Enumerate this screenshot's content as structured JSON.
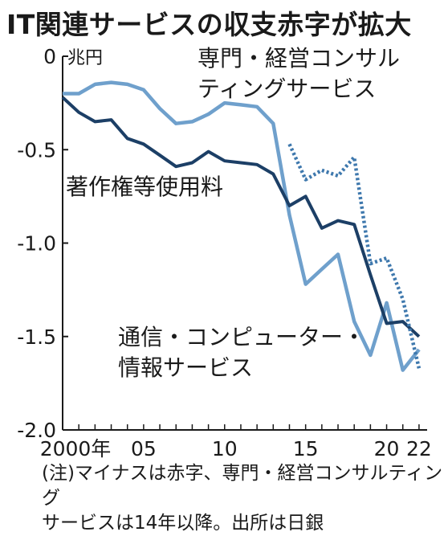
{
  "title": "IT関連サービスの収支赤字が拡大",
  "annotations": {
    "consulting_line1": "専門・経営コンサル",
    "consulting_line2": "ティングサービス",
    "royalty": "著作権等使用料",
    "telecom_line1": "通信・コンピューター・",
    "telecom_line2": "情報サービス"
  },
  "footnote": {
    "line1": "(注)マイナスは赤字、専門・経営コンサルティング",
    "line2": "サービスは14年以降。出所は日銀"
  },
  "colors": {
    "royalty": "#1c3f66",
    "telecom": "#6fa0cc",
    "consulting": "#3e78ad",
    "axis": "#1a1a1a",
    "text": "#1a1a1a"
  },
  "chart_data": {
    "type": "line",
    "unit": "兆円",
    "ylim": [
      -2.0,
      0
    ],
    "yticks": [
      {
        "value": 0,
        "label": "0"
      },
      {
        "value": -0.5,
        "label": "-0.5"
      },
      {
        "value": -1.0,
        "label": "-1.0"
      },
      {
        "value": -1.5,
        "label": "-1.5"
      },
      {
        "value": -2.0,
        "label": "-2.0"
      }
    ],
    "xlim": [
      2000,
      2022.5
    ],
    "xticks": [
      {
        "value": 2000,
        "label": "2000年"
      },
      {
        "value": 2005,
        "label": "05"
      },
      {
        "value": 2010,
        "label": "10"
      },
      {
        "value": 2015,
        "label": "15"
      },
      {
        "value": 2020,
        "label": "20"
      },
      {
        "value": 2022,
        "label": "22"
      }
    ],
    "grid": false,
    "series": [
      {
        "name": "通信・コンピューター・情報サービス",
        "style": "solid-light",
        "points": [
          [
            2000,
            -0.2
          ],
          [
            2001,
            -0.2
          ],
          [
            2002,
            -0.15
          ],
          [
            2003,
            -0.14
          ],
          [
            2004,
            -0.15
          ],
          [
            2005,
            -0.18
          ],
          [
            2006,
            -0.28
          ],
          [
            2007,
            -0.36
          ],
          [
            2008,
            -0.35
          ],
          [
            2009,
            -0.31
          ],
          [
            2010,
            -0.25
          ],
          [
            2011,
            -0.26
          ],
          [
            2012,
            -0.27
          ],
          [
            2013,
            -0.36
          ],
          [
            2014,
            -0.85
          ],
          [
            2015,
            -1.22
          ],
          [
            2016,
            -1.14
          ],
          [
            2017,
            -1.06
          ],
          [
            2018,
            -1.42
          ],
          [
            2019,
            -1.6
          ],
          [
            2020,
            -1.32
          ],
          [
            2021,
            -1.68
          ],
          [
            2022,
            -1.57
          ]
        ]
      },
      {
        "name": "著作権等使用料",
        "style": "solid-dark",
        "points": [
          [
            2000,
            -0.22
          ],
          [
            2001,
            -0.3
          ],
          [
            2002,
            -0.35
          ],
          [
            2003,
            -0.34
          ],
          [
            2004,
            -0.44
          ],
          [
            2005,
            -0.47
          ],
          [
            2006,
            -0.53
          ],
          [
            2007,
            -0.59
          ],
          [
            2008,
            -0.57
          ],
          [
            2009,
            -0.51
          ],
          [
            2010,
            -0.56
          ],
          [
            2011,
            -0.57
          ],
          [
            2012,
            -0.58
          ],
          [
            2013,
            -0.63
          ],
          [
            2014,
            -0.8
          ],
          [
            2015,
            -0.75
          ],
          [
            2016,
            -0.92
          ],
          [
            2017,
            -0.88
          ],
          [
            2018,
            -0.9
          ],
          [
            2019,
            -1.17
          ],
          [
            2020,
            -1.43
          ],
          [
            2021,
            -1.42
          ],
          [
            2022,
            -1.5
          ]
        ]
      },
      {
        "name": "専門・経営コンサルティングサービス",
        "style": "dotted",
        "points": [
          [
            2014,
            -0.47
          ],
          [
            2015,
            -0.66
          ],
          [
            2016,
            -0.61
          ],
          [
            2017,
            -0.64
          ],
          [
            2018,
            -0.54
          ],
          [
            2019,
            -1.11
          ],
          [
            2020,
            -1.08
          ],
          [
            2021,
            -1.3
          ],
          [
            2022,
            -1.67
          ]
        ]
      }
    ]
  }
}
